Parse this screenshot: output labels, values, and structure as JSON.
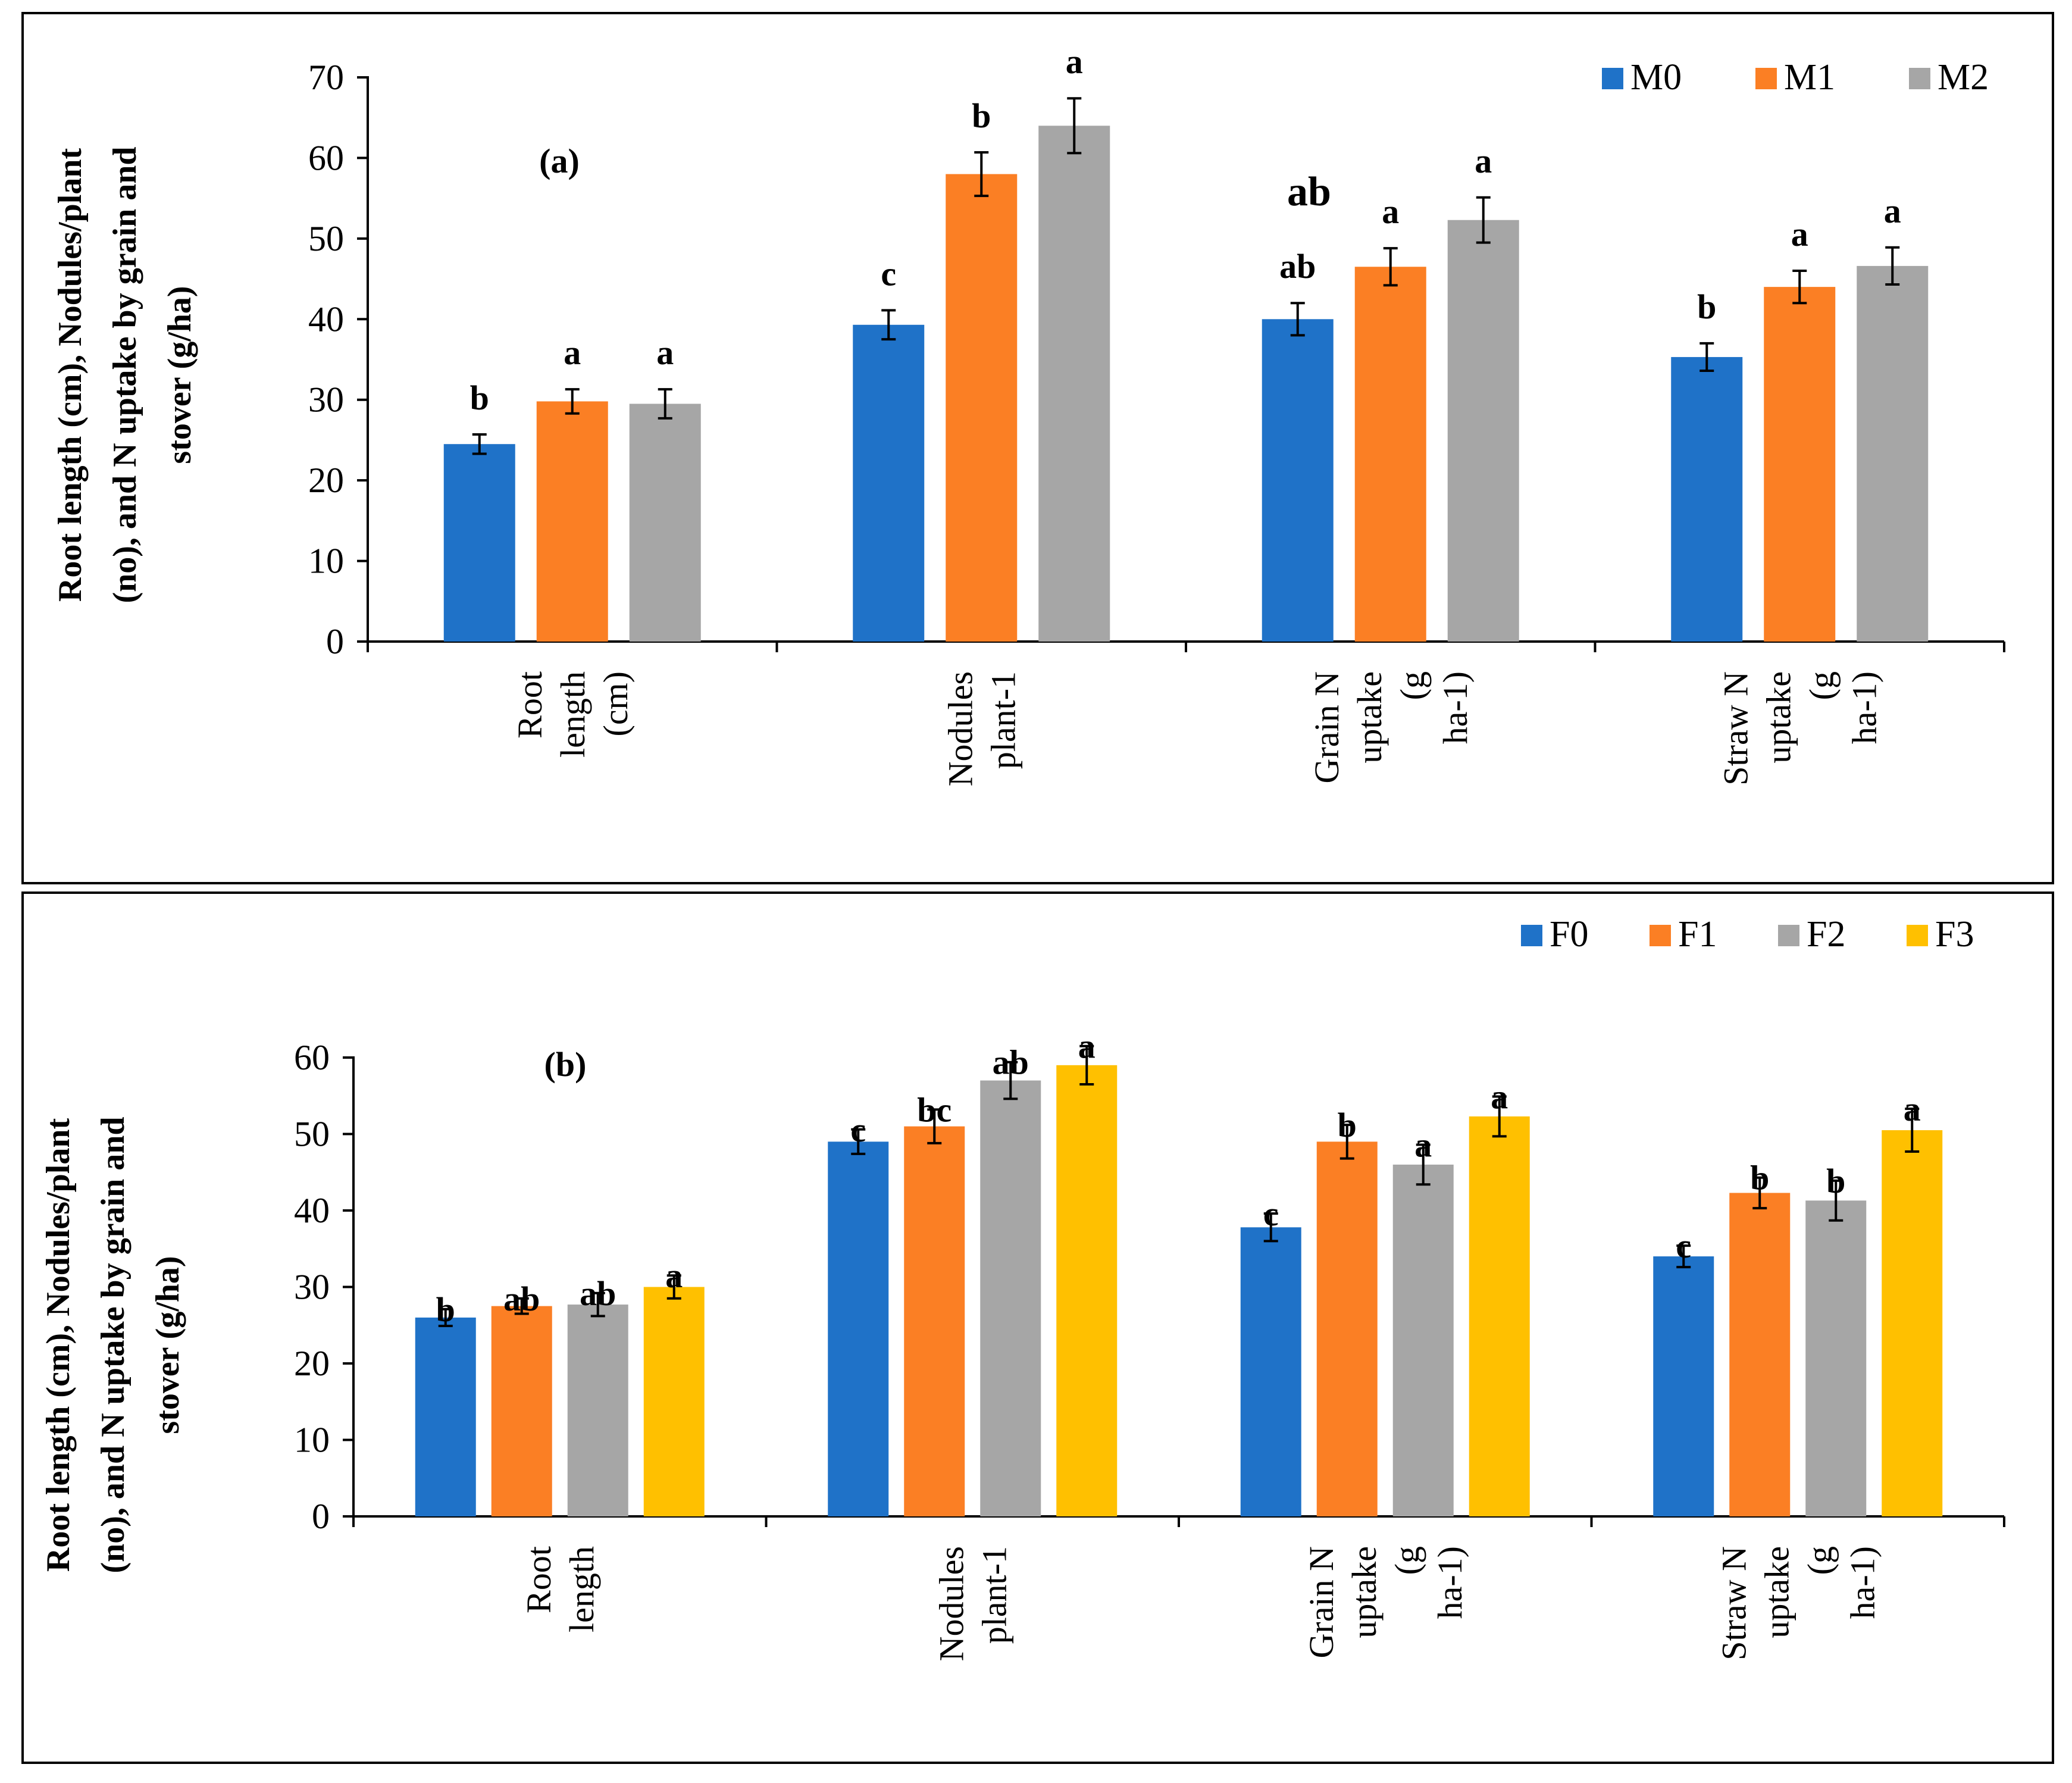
{
  "chart_data": [
    {
      "type": "bar",
      "panel_label": "(a)",
      "ylabel_lines": [
        "Root length (cm), Nodules/plant",
        "(no), and N uptake by grain and",
        "stover (g/ha)"
      ],
      "ylim": [
        0,
        70
      ],
      "yticks": [
        "0",
        "10",
        "20",
        "30",
        "40",
        "50",
        "60",
        "70"
      ],
      "categories": [
        [
          "Root",
          "length",
          "(cm)"
        ],
        [
          "Nodules",
          "plant-1"
        ],
        [
          "Grain N",
          "uptake",
          "(g",
          "ha-1)"
        ],
        [
          "Straw N",
          "uptake",
          "(g",
          "ha-1)"
        ]
      ],
      "legend_position": "top-right",
      "series": [
        {
          "name": "M0",
          "color": "#1f72c8",
          "values": [
            24.5,
            39.3,
            40.0,
            35.3
          ],
          "errors": [
            1.2,
            1.8,
            2.0,
            1.7
          ],
          "letters": [
            "b",
            "c",
            "ab",
            "b"
          ]
        },
        {
          "name": "M1",
          "color": "#fb7f24",
          "values": [
            29.8,
            58.0,
            46.5,
            44.0
          ],
          "errors": [
            1.5,
            2.7,
            2.3,
            2.0
          ],
          "letters": [
            "a",
            "b",
            "a",
            "a"
          ]
        },
        {
          "name": "M2",
          "color": "#a6a6a6",
          "values": [
            29.5,
            64.0,
            52.3,
            46.6
          ],
          "errors": [
            1.8,
            3.4,
            2.8,
            2.3
          ],
          "letters": [
            "a",
            "a",
            "a",
            "a"
          ]
        }
      ],
      "extra_annotation": "ab"
    },
    {
      "type": "bar",
      "panel_label": "(b)",
      "ylabel_lines": [
        "Root length (cm), Nodules/plant",
        "(no), and N uptake by grain and",
        "stover (g/ha)"
      ],
      "ylim": [
        0,
        60
      ],
      "yticks": [
        "0",
        "10",
        "20",
        "30",
        "40",
        "50",
        "60"
      ],
      "categories": [
        [
          "Root",
          "length"
        ],
        [
          "Nodules",
          "plant-1"
        ],
        [
          "Grain N",
          "uptake",
          "(g",
          "ha-1)"
        ],
        [
          "Straw N",
          "uptake",
          "(g",
          "ha-1)"
        ]
      ],
      "legend_position": "top-right",
      "series": [
        {
          "name": "F0",
          "color": "#1f72c8",
          "values": [
            26.0,
            49.0,
            37.8,
            34.0
          ],
          "errors": [
            1.1,
            1.6,
            1.8,
            1.4
          ],
          "letters": [
            "b",
            "c",
            "c",
            "c"
          ]
        },
        {
          "name": "F1",
          "color": "#fb7f24",
          "values": [
            27.5,
            51.0,
            49.0,
            42.3
          ],
          "errors": [
            1.0,
            2.2,
            2.2,
            2.0
          ],
          "letters": [
            "ab",
            "bc",
            "b",
            "b"
          ]
        },
        {
          "name": "F2",
          "color": "#a6a6a6",
          "values": [
            27.7,
            57.0,
            46.0,
            41.3
          ],
          "errors": [
            1.5,
            2.4,
            2.6,
            2.6
          ],
          "letters": [
            "ab",
            "ab",
            "a",
            "b"
          ]
        },
        {
          "name": "F3",
          "color": "#ffc000",
          "values": [
            30.0,
            59.0,
            52.3,
            50.5
          ],
          "errors": [
            1.5,
            2.5,
            2.6,
            2.8
          ],
          "letters": [
            "a",
            "a",
            "a",
            "a"
          ]
        }
      ]
    }
  ]
}
